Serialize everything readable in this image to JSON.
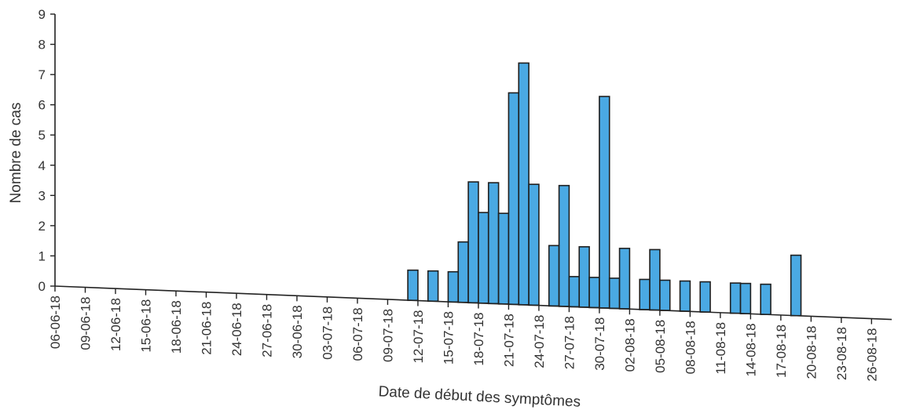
{
  "chart_data": {
    "type": "bar",
    "title": "",
    "xlabel": "Date de début des symptômes",
    "ylabel": "Nombre de cas",
    "ylim": [
      0,
      9
    ],
    "yticks": [
      0,
      1,
      2,
      3,
      4,
      5,
      6,
      7,
      8,
      9
    ],
    "grid": false,
    "legend": "none",
    "bar_color": "#4aa9e3",
    "x_start": "06-06-18",
    "x_end": "28-08-18",
    "xtick_labels": [
      "06-06-18",
      "09-06-18",
      "12-06-18",
      "15-06-18",
      "18-06-18",
      "21-06-18",
      "24-06-18",
      "27-06-18",
      "30-06-18",
      "03-07-18",
      "06-07-18",
      "09-07-18",
      "12-07-18",
      "15-07-18",
      "18-07-18",
      "21-07-18",
      "24-07-18",
      "27-07-18",
      "30-07-18",
      "02-08-18",
      "05-08-18",
      "08-08-18",
      "11-08-18",
      "14-08-18",
      "17-08-18",
      "20-08-18",
      "23-08-18",
      "26-08-18"
    ],
    "dates": [
      "11-07-18",
      "13-07-18",
      "15-07-18",
      "16-07-18",
      "17-07-18",
      "18-07-18",
      "19-07-18",
      "20-07-18",
      "21-07-18",
      "22-07-18",
      "23-07-18",
      "25-07-18",
      "26-07-18",
      "27-07-18",
      "28-07-18",
      "29-07-18",
      "30-07-18",
      "31-07-18",
      "01-08-18",
      "03-08-18",
      "04-08-18",
      "05-08-18",
      "07-08-18",
      "09-08-18",
      "12-08-18",
      "13-08-18",
      "15-08-18",
      "18-08-18"
    ],
    "values": [
      1,
      1,
      1,
      2,
      4,
      3,
      4,
      3,
      7,
      8,
      4,
      2,
      4,
      1,
      2,
      1,
      7,
      1,
      2,
      1,
      2,
      1,
      1,
      1,
      1,
      1,
      1,
      2
    ]
  }
}
